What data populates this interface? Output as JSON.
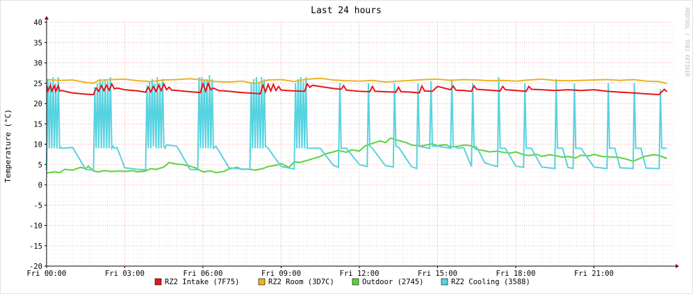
{
  "chart_data": {
    "type": "line",
    "title": "Last 24 hours",
    "ylabel": "Temperature (°C)",
    "watermark": "RRDTOOL / TOBI OETIKER",
    "ylim": [
      -20,
      40
    ],
    "y_ticks": [
      40,
      35,
      30,
      25,
      20,
      15,
      10,
      5,
      0,
      -5,
      -10,
      -15,
      -20
    ],
    "xlim_hours": [
      0,
      24
    ],
    "x_ticks": [
      {
        "hour": 0,
        "label": "Fri 00:00"
      },
      {
        "hour": 3,
        "label": "Fri 03:00"
      },
      {
        "hour": 6,
        "label": "Fri 06:00"
      },
      {
        "hour": 9,
        "label": "Fri 09:00"
      },
      {
        "hour": 12,
        "label": "Fri 12:00"
      },
      {
        "hour": 15,
        "label": "Fri 15:00"
      },
      {
        "hour": 18,
        "label": "Fri 18:00"
      },
      {
        "hour": 21,
        "label": "Fri 21:00"
      }
    ],
    "grid": true,
    "legend_position": "bottom",
    "series": [
      {
        "name": "RZ2 Intake (7F75)",
        "color": "#e8141a",
        "x": [
          0,
          0.05,
          0.15,
          0.2,
          0.3,
          0.35,
          0.45,
          0.5,
          0.6,
          0.7,
          1.0,
          1.5,
          1.8,
          1.9,
          2.0,
          2.1,
          2.2,
          2.3,
          2.4,
          2.5,
          2.6,
          2.7,
          3.0,
          3.5,
          3.8,
          3.9,
          4.0,
          4.1,
          4.2,
          4.3,
          4.4,
          4.5,
          4.6,
          4.7,
          4.8,
          5.0,
          5.5,
          5.9,
          6.0,
          6.1,
          6.2,
          6.3,
          6.4,
          6.5,
          6.6,
          7.0,
          7.5,
          8.0,
          8.2,
          8.3,
          8.4,
          8.5,
          8.6,
          8.7,
          8.8,
          8.9,
          9.0,
          9.5,
          9.9,
          10.0,
          10.1,
          10.2,
          11.0,
          11.3,
          11.4,
          11.5,
          12.0,
          12.4,
          12.5,
          12.6,
          13.0,
          13.4,
          13.5,
          13.6,
          14.0,
          14.3,
          14.4,
          14.5,
          14.8,
          15.0,
          15.5,
          15.6,
          15.7,
          16.0,
          16.3,
          16.4,
          16.5,
          17.0,
          17.4,
          17.5,
          17.6,
          18.0,
          18.4,
          18.5,
          18.6,
          19.0,
          19.5,
          20.0,
          20.5,
          21.0,
          21.5,
          22.0,
          22.5,
          23.0,
          23.5,
          23.7,
          23.8
        ],
        "values": [
          24.3,
          23.0,
          24.5,
          23.1,
          24.3,
          23.0,
          24.4,
          23.1,
          23.2,
          23.0,
          22.6,
          22.3,
          22.2,
          23.8,
          23.0,
          24.4,
          23.2,
          24.5,
          23.3,
          24.8,
          23.6,
          23.8,
          23.4,
          23.1,
          22.8,
          24.0,
          22.9,
          24.2,
          23.0,
          24.5,
          23.2,
          24.8,
          23.4,
          24.0,
          23.3,
          23.2,
          22.9,
          22.7,
          24.8,
          23.1,
          24.9,
          23.4,
          23.8,
          23.5,
          23.2,
          23.0,
          22.7,
          22.5,
          22.4,
          24.5,
          22.9,
          24.7,
          23.1,
          24.7,
          23.2,
          24.2,
          23.3,
          23.1,
          23.0,
          24.8,
          24.0,
          24.5,
          23.7,
          23.5,
          24.4,
          23.3,
          23.0,
          22.9,
          24.2,
          23.0,
          22.9,
          22.8,
          24.0,
          22.9,
          22.8,
          22.6,
          24.3,
          23.1,
          23.0,
          24.2,
          23.4,
          24.3,
          23.3,
          23.2,
          23.0,
          24.3,
          23.5,
          23.3,
          23.1,
          24.2,
          23.4,
          23.2,
          23.0,
          24.2,
          23.5,
          23.4,
          23.2,
          23.4,
          23.2,
          23.4,
          23.0,
          22.8,
          22.6,
          22.4,
          22.2,
          23.5,
          22.9
        ]
      },
      {
        "name": "RZ2 Room (3D7C)",
        "color": "#e8b423",
        "x": [
          0,
          0.5,
          1.0,
          1.5,
          1.8,
          2.0,
          2.5,
          3.0,
          3.5,
          4.0,
          4.5,
          5.0,
          5.5,
          6.0,
          6.5,
          7.0,
          7.5,
          8.0,
          8.5,
          9.0,
          9.5,
          10.0,
          10.5,
          11.0,
          11.5,
          12.0,
          12.5,
          13.0,
          13.5,
          14.0,
          14.5,
          15.0,
          15.5,
          16.0,
          16.5,
          17.0,
          17.5,
          18.0,
          18.5,
          19.0,
          19.5,
          20.0,
          20.5,
          21.0,
          21.5,
          22.0,
          22.5,
          23.0,
          23.5,
          23.8
        ],
        "values": [
          25.9,
          25.7,
          25.8,
          25.2,
          25.0,
          25.7,
          25.9,
          26.0,
          25.6,
          25.4,
          25.8,
          25.9,
          26.1,
          25.8,
          25.4,
          25.3,
          25.5,
          24.9,
          25.8,
          25.9,
          25.4,
          26.0,
          26.2,
          25.8,
          25.6,
          25.5,
          25.7,
          25.3,
          25.5,
          25.7,
          25.9,
          26.0,
          25.7,
          25.9,
          25.8,
          25.6,
          25.7,
          25.5,
          25.8,
          26.0,
          25.7,
          25.6,
          25.7,
          25.8,
          25.9,
          25.7,
          25.9,
          25.5,
          25.4,
          24.9
        ]
      },
      {
        "name": "Outdoor (2745)",
        "color": "#5ad33a",
        "x": [
          0,
          0.3,
          0.5,
          0.7,
          1.0,
          1.3,
          1.5,
          1.6,
          1.8,
          2.0,
          2.2,
          2.5,
          2.8,
          3.0,
          3.3,
          3.5,
          3.8,
          4.0,
          4.2,
          4.5,
          4.7,
          5.0,
          5.2,
          5.5,
          5.7,
          6.0,
          6.3,
          6.5,
          6.8,
          7.0,
          7.3,
          7.5,
          7.7,
          8.0,
          8.3,
          8.5,
          8.8,
          9.0,
          9.3,
          9.5,
          9.7,
          10.0,
          10.2,
          10.5,
          10.7,
          11.0,
          11.2,
          11.5,
          11.7,
          12.0,
          12.2,
          12.5,
          12.8,
          13.0,
          13.2,
          13.5,
          13.8,
          14.0,
          14.3,
          14.5,
          14.8,
          15.0,
          15.3,
          15.5,
          15.8,
          16.0,
          16.3,
          16.5,
          16.8,
          17.0,
          17.3,
          17.5,
          17.8,
          18.0,
          18.3,
          18.5,
          18.8,
          19.0,
          19.3,
          19.5,
          19.8,
          20.0,
          20.3,
          20.5,
          20.8,
          21.0,
          21.3,
          21.5,
          21.8,
          22.0,
          22.3,
          22.5,
          22.8,
          23.0,
          23.3,
          23.5,
          23.8
        ],
        "values": [
          2.9,
          3.2,
          3.0,
          3.8,
          3.6,
          4.3,
          4.0,
          4.6,
          3.4,
          3.2,
          3.5,
          3.3,
          3.4,
          3.3,
          3.5,
          3.2,
          3.4,
          4.0,
          3.8,
          4.4,
          5.5,
          5.1,
          5.0,
          4.6,
          4.2,
          3.2,
          3.4,
          3.0,
          3.3,
          3.9,
          4.3,
          3.8,
          3.9,
          3.6,
          4.0,
          4.5,
          4.8,
          5.2,
          4.3,
          5.7,
          5.5,
          6.0,
          6.4,
          7.0,
          7.6,
          8.1,
          8.5,
          8.0,
          8.6,
          8.3,
          9.5,
          10.2,
          10.8,
          10.4,
          11.5,
          10.9,
          10.4,
          9.8,
          9.5,
          9.7,
          10.1,
          9.6,
          9.9,
          9.3,
          9.5,
          9.8,
          9.6,
          8.7,
          8.4,
          8.1,
          8.3,
          8.0,
          7.8,
          8.1,
          7.4,
          7.2,
          7.5,
          7.0,
          7.4,
          7.2,
          6.8,
          7.0,
          6.6,
          7.3,
          7.1,
          7.5,
          7.0,
          6.9,
          6.8,
          6.7,
          6.2,
          5.8,
          6.6,
          7.1,
          7.4,
          7.2,
          6.5
        ]
      },
      {
        "name": "RZ2 Cooling (3588)",
        "color": "#55d3e0",
        "x": [
          0.0,
          0.05,
          0.1,
          0.15,
          0.2,
          0.25,
          0.3,
          0.35,
          0.4,
          0.45,
          0.5,
          0.55,
          0.6,
          1.0,
          1.5,
          1.8,
          1.85,
          1.9,
          1.95,
          2.0,
          2.05,
          2.1,
          2.15,
          2.2,
          2.25,
          2.3,
          2.35,
          2.4,
          2.45,
          2.5,
          2.55,
          2.6,
          2.7,
          3.0,
          3.5,
          3.8,
          3.85,
          3.9,
          3.95,
          4.0,
          4.05,
          4.1,
          4.15,
          4.2,
          4.25,
          4.3,
          4.35,
          4.4,
          4.45,
          4.5,
          4.55,
          4.6,
          5.0,
          5.5,
          5.8,
          5.85,
          5.9,
          5.95,
          6.0,
          6.05,
          6.1,
          6.15,
          6.2,
          6.25,
          6.3,
          6.35,
          6.4,
          6.5,
          7.0,
          7.5,
          7.8,
          7.85,
          7.9,
          7.95,
          8.0,
          8.05,
          8.1,
          8.15,
          8.2,
          8.25,
          8.3,
          8.35,
          8.4,
          8.5,
          9.0,
          9.5,
          9.55,
          9.6,
          9.65,
          9.7,
          9.75,
          9.8,
          9.85,
          9.9,
          9.95,
          10.0,
          10.5,
          11.0,
          11.2,
          11.25,
          11.3,
          11.5,
          12.0,
          12.3,
          12.35,
          12.4,
          12.5,
          13.0,
          13.3,
          13.35,
          13.4,
          13.5,
          14.0,
          14.2,
          14.25,
          14.3,
          14.5,
          14.7,
          14.75,
          14.8,
          15.0,
          15.5,
          15.55,
          15.6,
          15.8,
          16.0,
          16.3,
          16.35,
          16.4,
          16.5,
          16.8,
          17.0,
          17.3,
          17.35,
          17.4,
          17.6,
          18.0,
          18.3,
          18.35,
          18.4,
          18.6,
          19.0,
          19.5,
          19.55,
          19.6,
          19.8,
          20.0,
          20.2,
          20.25,
          20.3,
          20.5,
          21.0,
          21.5,
          21.55,
          21.6,
          21.8,
          22.0,
          22.5,
          22.55,
          22.6,
          22.8,
          23.0,
          23.5,
          23.55,
          23.6,
          23.8
        ],
        "values": [
          3.6,
          26.0,
          9.0,
          25.5,
          9.0,
          26.5,
          9.0,
          25.0,
          9.0,
          26.5,
          9.0,
          9.2,
          9.0,
          9.2,
          3.8,
          3.6,
          24.0,
          9.0,
          25.0,
          9.0,
          26.0,
          9.0,
          25.5,
          9.0,
          26.0,
          9.0,
          25.5,
          9.0,
          26.5,
          9.0,
          9.5,
          9.0,
          9.2,
          4.2,
          3.8,
          3.7,
          24.5,
          9.0,
          25.5,
          9.0,
          26.0,
          9.5,
          25.0,
          9.0,
          26.5,
          9.0,
          25.0,
          9.0,
          26.0,
          9.5,
          9.0,
          9.8,
          9.5,
          3.8,
          3.7,
          26.5,
          9.0,
          26.5,
          9.0,
          26.0,
          9.0,
          26.0,
          9.0,
          27.0,
          9.0,
          26.0,
          9.0,
          9.5,
          4.2,
          3.9,
          3.8,
          25.0,
          9.0,
          26.0,
          9.0,
          26.5,
          9.0,
          25.0,
          9.0,
          26.5,
          9.0,
          26.0,
          9.5,
          9.0,
          4.5,
          3.9,
          25.0,
          9.0,
          26.0,
          9.0,
          26.5,
          9.0,
          25.5,
          9.0,
          26.5,
          9.0,
          9.0,
          4.8,
          4.3,
          25.0,
          9.0,
          9.0,
          5.0,
          4.5,
          25.0,
          9.5,
          9.0,
          4.7,
          4.4,
          25.0,
          9.5,
          9.3,
          4.5,
          4.0,
          25.0,
          9.5,
          9.2,
          9.0,
          25.5,
          9.5,
          9.5,
          9.0,
          26.0,
          9.5,
          9.0,
          9.2,
          4.5,
          25.0,
          9.5,
          9.3,
          5.5,
          5.0,
          4.5,
          26.5,
          9.0,
          9.0,
          4.6,
          4.3,
          25.0,
          9.0,
          9.0,
          4.4,
          4.0,
          26.0,
          9.0,
          9.0,
          4.3,
          4.0,
          25.0,
          9.0,
          9.0,
          4.4,
          4.0,
          25.0,
          9.0,
          9.0,
          4.2,
          4.0,
          25.0,
          9.0,
          9.0,
          4.1,
          4.0,
          23.5,
          9.0,
          9.0
        ]
      }
    ]
  }
}
